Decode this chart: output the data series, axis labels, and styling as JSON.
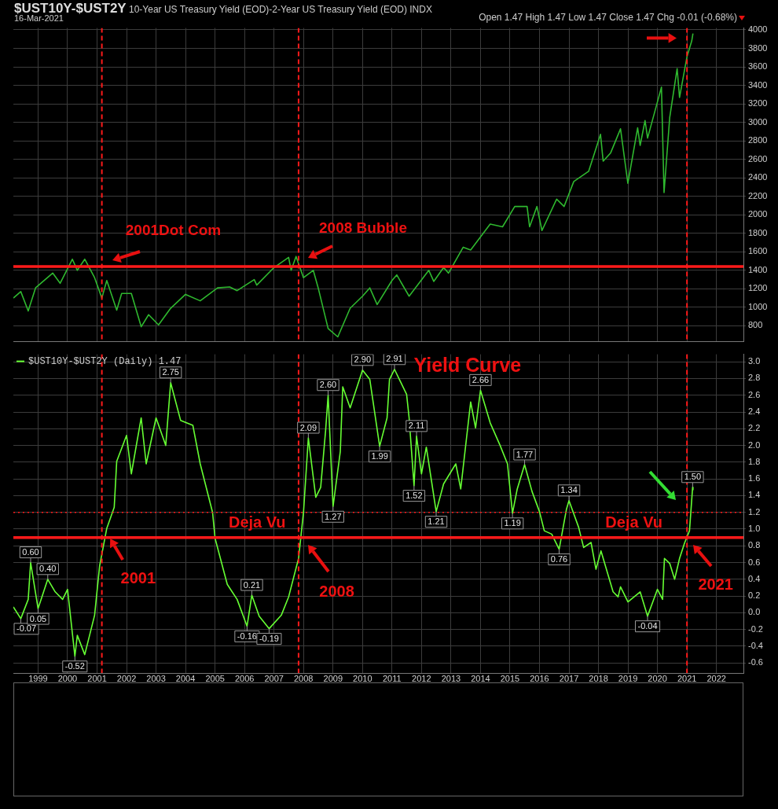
{
  "chart_data": [
    {
      "type": "line",
      "title": "$UST10Y-$UST2Y 10-Year US Treasury Yield (EOD)-2-Year US Treasury Yield (EOD) INDX",
      "subtitle": "16-Mar-2021",
      "annotations": [
        "Open 1.47 High 1.47 Low 1.47 Close 1.47 Chg -0.01 (-0.68%)",
        "2001Dot Com",
        "2008 Bubble"
      ],
      "series": [
        {
          "color": "#2fb82f",
          "x": [
            "1998-03",
            "1998-06",
            "1998-09",
            "1998-12",
            "1999-07",
            "1999-10",
            "2000-03",
            "2000-05",
            "2000-08",
            "2000-12",
            "2001-03",
            "2001-05",
            "2001-09",
            "2001-11",
            "2002-03",
            "2002-07",
            "2002-10",
            "2003-02",
            "2003-07",
            "2004-01",
            "2004-07",
            "2005-02",
            "2005-07",
            "2005-10",
            "2006-05",
            "2006-06",
            "2007-01",
            "2007-07",
            "2007-08",
            "2007-10",
            "2008-01",
            "2008-05",
            "2008-07",
            "2008-11",
            "2009-03",
            "2009-08",
            "2010-01",
            "2010-04",
            "2010-07",
            "2011-01",
            "2011-03",
            "2011-08",
            "2012-04",
            "2012-06",
            "2012-10",
            "2012-12",
            "2013-06",
            "2013-09",
            "2014-05",
            "2014-10",
            "2015-03",
            "2015-08",
            "2015-09",
            "2015-12",
            "2016-02",
            "2016-08",
            "2016-11",
            "2017-03",
            "2017-09",
            "2018-01-26",
            "2018-02-28",
            "2018-06",
            "2018-10",
            "2018-12-31",
            "2019-05",
            "2019-06",
            "2019-08",
            "2019-09",
            "2020-02-20",
            "2020-03-23",
            "2020-06",
            "2020-09",
            "2020-10",
            "2021-01",
            "2021-03-01",
            "2021-03-16"
          ],
          "values": [
            1100,
            1170,
            960,
            1210,
            1370,
            1260,
            1520,
            1400,
            1520,
            1320,
            1100,
            1290,
            970,
            1150,
            1150,
            790,
            920,
            810,
            990,
            1140,
            1070,
            1210,
            1220,
            1180,
            1300,
            1240,
            1430,
            1540,
            1400,
            1550,
            1320,
            1400,
            1210,
            770,
            680,
            990,
            1120,
            1210,
            1030,
            1290,
            1350,
            1120,
            1400,
            1280,
            1430,
            1370,
            1650,
            1620,
            1900,
            1870,
            2090,
            2090,
            1870,
            2090,
            1830,
            2170,
            2090,
            2360,
            2470,
            2870,
            2580,
            2670,
            2930,
            2340,
            2940,
            2750,
            3020,
            2830,
            3380,
            2240,
            3050,
            3580,
            3270,
            3710,
            3880,
            3960
          ]
        }
      ],
      "xlim": [
        "1998-03",
        "2022-12"
      ],
      "xticks": [
        "1999",
        "2000",
        "2001",
        "2002",
        "2003",
        "2004",
        "2005",
        "2006",
        "2007",
        "2008",
        "2009",
        "2010",
        "2011",
        "2012",
        "2013",
        "2014",
        "2015",
        "2016",
        "2017",
        "2018",
        "2019",
        "2020",
        "2021",
        "2022"
      ],
      "ylim": [
        630,
        4020
      ],
      "yticks": [
        800,
        1000,
        1200,
        1400,
        1600,
        1800,
        2000,
        2200,
        2400,
        2600,
        2800,
        3000,
        3200,
        3400,
        3600,
        3800,
        4000
      ],
      "tick_labels": "y",
      "grid": true,
      "ref_lines": [
        {
          "axis": "y",
          "value": 1440,
          "color": "#ff1a1a",
          "line_style": "solid"
        },
        {
          "axis": "x",
          "value": "2001-03",
          "color": "#ff1a1a",
          "line_style": "dashed"
        },
        {
          "axis": "x",
          "value": "2007-11",
          "color": "#ff1a1a",
          "line_style": "dashed"
        },
        {
          "axis": "x",
          "value": "2021-01",
          "color": "#ff1a1a",
          "line_style": "dashed"
        }
      ]
    },
    {
      "type": "line",
      "annotations": [
        "Yield Curve",
        "Deja Vu",
        "Deja Vu",
        "2001",
        "2008",
        "2021"
      ],
      "series": [
        {
          "name": "$UST10Y-$UST2Y (Daily) 1.47",
          "color": "#66ff33",
          "x": [
            "1998-03",
            "1998-06",
            "1998-09",
            "1998-10",
            "1999-01",
            "1999-05",
            "1999-08",
            "1999-11",
            "2000-01",
            "2000-04",
            "2000-05",
            "2000-08",
            "2000-12",
            "2001-02",
            "2001-05",
            "2001-08",
            "2001-09",
            "2002-01",
            "2002-03",
            "2002-07",
            "2002-09",
            "2003-01",
            "2003-05",
            "2003-07",
            "2003-11",
            "2004-04",
            "2004-07",
            "2004-12",
            "2005-01",
            "2005-06",
            "2005-10",
            "2006-02",
            "2006-04",
            "2006-07",
            "2006-11",
            "2007-04",
            "2007-07",
            "2007-11",
            "2008-01",
            "2008-03",
            "2008-06",
            "2008-08",
            "2008-10",
            "2008-11",
            "2009-01",
            "2009-04",
            "2009-05",
            "2009-08",
            "2010-01",
            "2010-04",
            "2010-08",
            "2010-11",
            "2010-12",
            "2011-02",
            "2011-07",
            "2011-08",
            "2011-10",
            "2011-11",
            "2012-01",
            "2012-03",
            "2012-07",
            "2012-10",
            "2013-03",
            "2013-05",
            "2013-09",
            "2013-11",
            "2014-01",
            "2014-05",
            "2014-09",
            "2014-12",
            "2015-02",
            "2015-04",
            "2015-07",
            "2015-10",
            "2016-01",
            "2016-03",
            "2016-06",
            "2016-09",
            "2016-12",
            "2017-01",
            "2017-05",
            "2017-07",
            "2017-10",
            "2017-12",
            "2018-02",
            "2018-07",
            "2018-09",
            "2018-10",
            "2019-01",
            "2019-06",
            "2019-09",
            "2020-01",
            "2020-03-05",
            "2020-03-28",
            "2020-06",
            "2020-08",
            "2020-10",
            "2020-12",
            "2021-02",
            "2021-03-12",
            "2021-03-16"
          ],
          "values": [
            0.07,
            -0.07,
            0.16,
            0.6,
            0.05,
            0.4,
            0.25,
            0.16,
            0.28,
            -0.52,
            -0.27,
            -0.5,
            -0.03,
            0.56,
            1.01,
            1.26,
            1.81,
            2.12,
            1.66,
            2.33,
            1.78,
            2.33,
            2.0,
            2.75,
            2.3,
            2.24,
            1.78,
            1.2,
            0.89,
            0.34,
            0.16,
            -0.16,
            0.21,
            -0.04,
            -0.19,
            -0.03,
            0.19,
            0.65,
            1.2,
            2.09,
            1.38,
            1.5,
            2.18,
            2.6,
            1.27,
            1.93,
            2.7,
            2.45,
            2.9,
            2.79,
            1.99,
            2.33,
            2.79,
            2.91,
            2.61,
            2.33,
            1.52,
            2.11,
            1.66,
            1.98,
            1.21,
            1.54,
            1.78,
            1.48,
            2.52,
            2.21,
            2.66,
            2.27,
            2.0,
            1.78,
            1.19,
            1.48,
            1.77,
            1.45,
            1.21,
            0.98,
            0.94,
            0.76,
            1.24,
            1.34,
            1.02,
            0.78,
            0.84,
            0.52,
            0.74,
            0.25,
            0.19,
            0.31,
            0.13,
            0.25,
            -0.04,
            0.28,
            0.16,
            0.65,
            0.59,
            0.4,
            0.65,
            0.83,
            0.98,
            1.5,
            1.47
          ],
          "value_labels": [
            null,
            "-0.07",
            null,
            "0.60",
            "0.05",
            "0.40",
            null,
            null,
            null,
            "-0.52",
            null,
            null,
            null,
            null,
            null,
            null,
            null,
            null,
            null,
            null,
            null,
            null,
            null,
            "2.75",
            null,
            null,
            null,
            null,
            null,
            null,
            null,
            "-0.16",
            "0.21",
            null,
            "-0.19",
            null,
            null,
            null,
            null,
            "2.09",
            null,
            null,
            null,
            "2.60",
            "1.27",
            null,
            null,
            null,
            "2.90",
            null,
            "1.99",
            null,
            null,
            "2.91",
            null,
            null,
            "1.52",
            "2.11",
            null,
            null,
            "1.21",
            null,
            null,
            null,
            null,
            null,
            "2.66",
            null,
            null,
            null,
            "1.19",
            null,
            "1.77",
            null,
            null,
            null,
            null,
            "0.76",
            null,
            "1.34",
            null,
            null,
            null,
            null,
            null,
            null,
            null,
            null,
            null,
            null,
            "-0.04",
            null,
            null,
            null,
            null,
            null,
            null,
            null,
            null,
            "1.50",
            null
          ]
        }
      ],
      "legend": "top left",
      "xlim": [
        "1998-03",
        "2022-12"
      ],
      "xticks": [
        "1999",
        "2000",
        "2001",
        "2002",
        "2003",
        "2004",
        "2005",
        "2006",
        "2007",
        "2008",
        "2009",
        "2010",
        "2011",
        "2012",
        "2013",
        "2014",
        "2015",
        "2016",
        "2017",
        "2018",
        "2019",
        "2020",
        "2021",
        "2022"
      ],
      "ylim": [
        -0.72,
        3.09
      ],
      "yticks": [
        {
          "value": -0.6,
          "label": "-0.6"
        },
        -0.4,
        -0.2,
        {
          "value": 0,
          "label": "0.0"
        },
        0.2,
        0.4,
        0.6,
        0.8,
        {
          "value": 1,
          "label": "1.0"
        },
        1.2,
        1.4,
        1.6,
        1.8,
        {
          "value": 2,
          "label": "2.0"
        },
        2.2,
        2.4,
        2.6,
        2.8,
        {
          "value": 3,
          "label": "3.0"
        }
      ],
      "grid": true,
      "ref_lines": [
        {
          "axis": "y",
          "value": 0.9,
          "color": "#ff1a1a",
          "line_style": "solid"
        },
        {
          "axis": "y",
          "value": 1.2,
          "color": "#ff1a1a",
          "line_style": "dotted"
        },
        {
          "axis": "x",
          "value": "2001-03",
          "color": "#ff1a1a",
          "line_style": "dashed"
        },
        {
          "axis": "x",
          "value": "2007-11",
          "color": "#ff1a1a",
          "line_style": "dashed"
        },
        {
          "axis": "x",
          "value": "2021-01",
          "color": "#ff1a1a",
          "line_style": "dashed"
        }
      ]
    }
  ]
}
